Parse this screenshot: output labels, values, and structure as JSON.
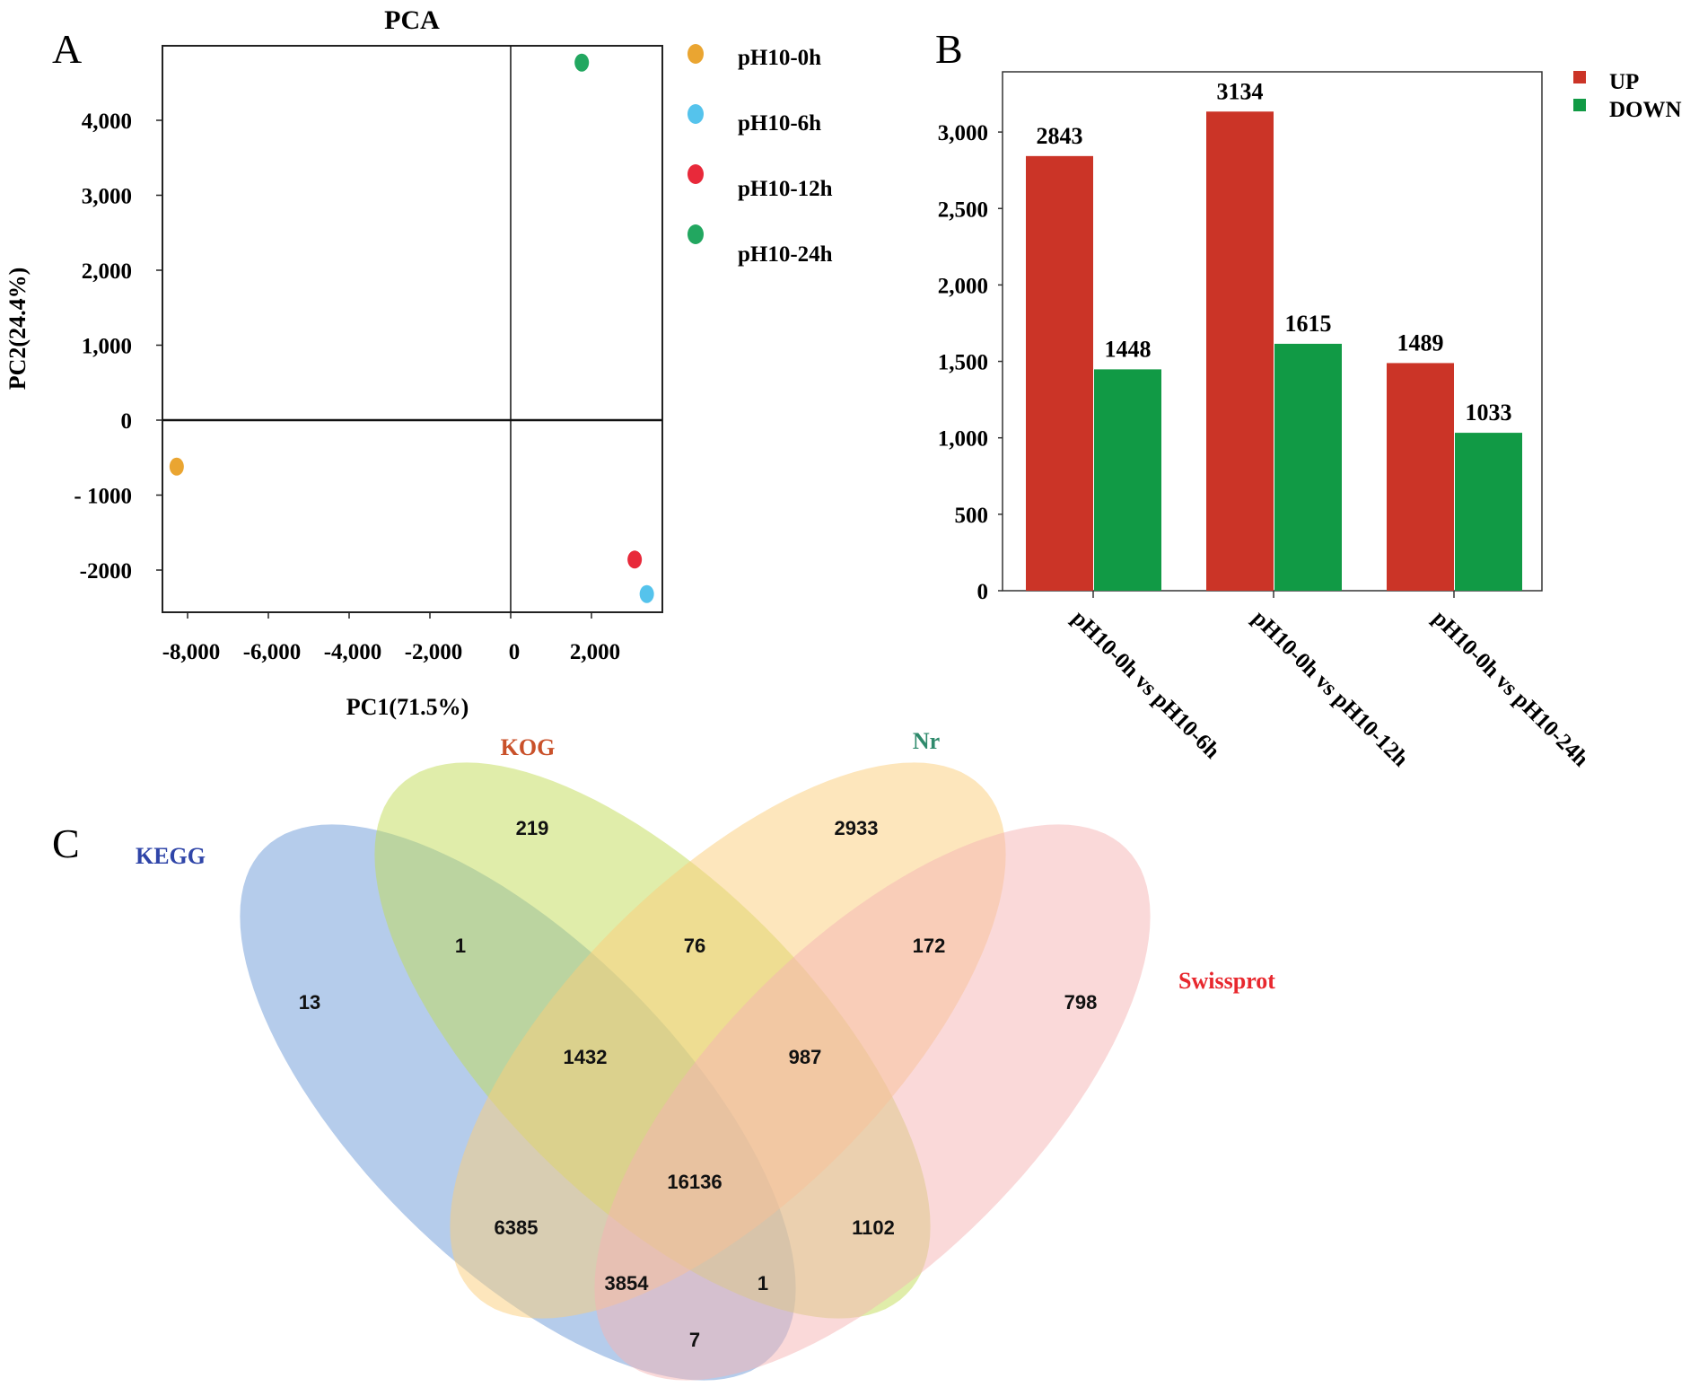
{
  "panels": {
    "a": "A",
    "b": "B",
    "c": "C"
  },
  "chart_data": [
    {
      "type": "scatter",
      "title": "PCA",
      "xlabel": "PC1(71.5%)",
      "ylabel": "PC2(24.4%)",
      "xlim": [
        -8500,
        3700
      ],
      "ylim": [
        -2600,
        5000
      ],
      "xticks": [
        -8000,
        -6000,
        -4000,
        -2000,
        0,
        2000
      ],
      "xtick_labels": [
        "-8,000",
        "-6,000",
        "-4,000",
        "-2,000",
        "0",
        "2,000"
      ],
      "yticks": [
        4000,
        3000,
        2000,
        1000,
        0,
        -1000,
        -2000
      ],
      "ytick_labels": [
        "4,000",
        "3,000",
        "2,000",
        "1,000",
        "0",
        "- 1000",
        "-2000"
      ],
      "grid": false,
      "legend_position": "right",
      "series": [
        {
          "name": "pH10-0h",
          "color": "#eaa531",
          "x": -8270,
          "y": -620
        },
        {
          "name": "pH10-6h",
          "color": "#55c3ec",
          "x": 3370,
          "y": -2320
        },
        {
          "name": "pH10-12h",
          "color": "#e8293a",
          "x": 3070,
          "y": -1860
        },
        {
          "name": "pH10-24h",
          "color": "#22a760",
          "x": 1760,
          "y": 4770
        }
      ]
    },
    {
      "type": "bar",
      "categories": [
        "pH10-0h  vs pH10-6h",
        "pH10-0h  vs pH10-12h",
        "pH10-0h  vs pH10-24h"
      ],
      "ylim": [
        0,
        3400
      ],
      "yticks": [
        0,
        500,
        1000,
        1500,
        2000,
        2500,
        3000
      ],
      "ytick_labels": [
        "0",
        "500",
        "1,000",
        "1,500",
        "2,000",
        "2,500",
        "3,000"
      ],
      "grid": false,
      "legend_position": "top-right",
      "series": [
        {
          "name": "UP",
          "color": "#cb3427",
          "values": [
            2843,
            3134,
            1489
          ]
        },
        {
          "name": "DOWN",
          "color": "#119a45",
          "values": [
            1448,
            1615,
            1033
          ]
        }
      ]
    }
  ],
  "venn": {
    "sets": [
      {
        "name": "KEGG",
        "color": "#6b9ad8",
        "label_color": "#2f45a8"
      },
      {
        "name": "KOG",
        "color": "#c2dc55",
        "label_color": "#c9512a"
      },
      {
        "name": "Nr",
        "color": "#fcce7a",
        "label_color": "#2f8a6c"
      },
      {
        "name": "Swissprot",
        "color": "#f6b3b3",
        "label_color": "#e8282e"
      }
    ],
    "regions": [
      {
        "sets": "KOG",
        "value": "219"
      },
      {
        "sets": "Nr",
        "value": "2933"
      },
      {
        "sets": "KEGG+KOG",
        "value": "1"
      },
      {
        "sets": "KOG+Nr",
        "value": "76"
      },
      {
        "sets": "Nr+Swissprot",
        "value": "172"
      },
      {
        "sets": "KEGG",
        "value": "13"
      },
      {
        "sets": "Swissprot",
        "value": "798"
      },
      {
        "sets": "KEGG+KOG+Nr",
        "value": "1432"
      },
      {
        "sets": "KOG+Nr+Swissprot",
        "value": "987"
      },
      {
        "sets": "KEGG+KOG+Nr+Swissprot",
        "value": "16136"
      },
      {
        "sets": "KEGG+Nr",
        "value": "6385"
      },
      {
        "sets": "KOG+Swissprot",
        "value": "1102"
      },
      {
        "sets": "KEGG+Nr+Swissprot",
        "value": "3854"
      },
      {
        "sets": "KEGG+KOG+Swissprot",
        "value": "1"
      },
      {
        "sets": "KEGG+Swissprot",
        "value": "7"
      }
    ]
  }
}
